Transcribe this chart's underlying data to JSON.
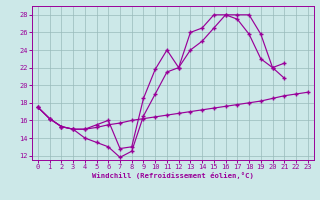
{
  "xlabel": "Windchill (Refroidissement éolien,°C)",
  "bg_color": "#cce8e8",
  "line_color": "#990099",
  "grid_color": "#99bbbb",
  "xlim": [
    -0.5,
    23.5
  ],
  "ylim": [
    11.5,
    29.0
  ],
  "yticks": [
    12,
    14,
    16,
    18,
    20,
    22,
    24,
    26,
    28
  ],
  "xticks": [
    0,
    1,
    2,
    3,
    4,
    5,
    6,
    7,
    8,
    9,
    10,
    11,
    12,
    13,
    14,
    15,
    16,
    17,
    18,
    19,
    20,
    21,
    22,
    23
  ],
  "s1_x": [
    0,
    1,
    2,
    3,
    4,
    5,
    6,
    7,
    8,
    9,
    10,
    11,
    12,
    13,
    14,
    15,
    16,
    17,
    18,
    19,
    20,
    21,
    22,
    23
  ],
  "s1_y": [
    17.5,
    16.2,
    15.3,
    15.0,
    15.0,
    15.2,
    15.5,
    15.7,
    16.0,
    16.2,
    16.4,
    16.6,
    16.8,
    17.0,
    17.2,
    17.4,
    17.6,
    17.8,
    18.0,
    18.2,
    18.5,
    18.8,
    19.0,
    19.2
  ],
  "s2_x": [
    0,
    1,
    2,
    3,
    4,
    5,
    6,
    7,
    8,
    9,
    10,
    11,
    12,
    13,
    14,
    15,
    16,
    17,
    18,
    19,
    20,
    21,
    22,
    23
  ],
  "s2_y": [
    17.5,
    16.2,
    15.3,
    15.0,
    14.0,
    13.5,
    13.0,
    11.8,
    12.5,
    16.5,
    19.0,
    21.5,
    22.0,
    24.0,
    25.0,
    26.5,
    28.0,
    28.0,
    28.0,
    25.8,
    22.0,
    20.8,
    null,
    null
  ],
  "s3_x": [
    0,
    1,
    2,
    3,
    4,
    5,
    6,
    7,
    8,
    9,
    10,
    11,
    12,
    13,
    14,
    15,
    16,
    17,
    18,
    19,
    20,
    21
  ],
  "s3_y": [
    17.5,
    16.2,
    15.3,
    15.0,
    15.0,
    15.5,
    16.0,
    12.8,
    13.0,
    18.5,
    21.8,
    24.0,
    22.0,
    26.0,
    26.5,
    28.0,
    28.0,
    27.5,
    25.8,
    23.0,
    22.0,
    22.5
  ]
}
